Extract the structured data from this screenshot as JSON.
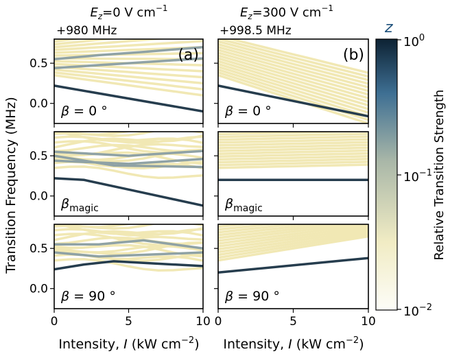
{
  "chart_data": {
    "type": "line",
    "columns": [
      {
        "top": "E",
        "top_sub": "z",
        "top_rest": "=0 V cm",
        "top_sup": "−1",
        "offset": "+980 MHz"
      },
      {
        "top": "E",
        "top_sub": "z",
        "top_rest": "=300 V cm",
        "top_sup": "−1",
        "offset": "+998.5 MHz"
      }
    ],
    "ylabel": "Transition Frequency (MHz)",
    "xlabel_main": "Intensity, ",
    "xlabel_var": "I",
    "xlabel_unit": " (kW cm",
    "xlabel_sup": "−2",
    "xlabel_close": ")",
    "xlim": [
      0,
      10
    ],
    "ylim": [
      -0.25,
      0.8
    ],
    "xticks": [
      "0",
      "5",
      "10"
    ],
    "yticks": [
      "0.0",
      "0.5"
    ],
    "yticks_values": [
      0.0,
      0.5
    ],
    "xticks_values": [
      0,
      5,
      10
    ],
    "panel_labels": [
      "(a)",
      "(b)"
    ],
    "row_labels": [
      {
        "greek": "β",
        "text": " = 0 °"
      },
      {
        "greek": "β",
        "sub": "magic"
      },
      {
        "greek": "β",
        "text": " = 90 °"
      }
    ],
    "colorbar": {
      "label": "Relative Transition Strength",
      "top_label": "z",
      "tick_top_base": "10",
      "tick_top_exp": "0",
      "tick_mid_base": "10",
      "tick_mid_exp": "−1",
      "tick_bot_base": "10",
      "tick_bot_exp": "−2",
      "scale": "log",
      "range": [
        0.01,
        1
      ],
      "color_low": "#f3ecc0",
      "color_high": "#0d2233"
    },
    "series": [
      {
        "panel": "a-row1",
        "strong": [
          [
            0,
            0.22
          ],
          [
            10,
            -0.1
          ]
        ],
        "medium": [
          [
            [
              0,
              0.55
            ],
            [
              3,
              0.6
            ],
            [
              6,
              0.64
            ],
            [
              10,
              0.7
            ]
          ],
          [
            [
              0,
              0.44
            ],
            [
              5,
              0.5
            ],
            [
              10,
              0.56
            ]
          ]
        ]
      },
      {
        "panel": "b-row1",
        "strong": [
          [
            0,
            0.22
          ],
          [
            10,
            -0.16
          ]
        ]
      },
      {
        "panel": "a-row2",
        "strong": [
          [
            0,
            0.22
          ],
          [
            2,
            0.2
          ],
          [
            5,
            0.08
          ],
          [
            10,
            -0.12
          ]
        ],
        "medium": [
          [
            [
              0,
              0.55
            ],
            [
              5,
              0.5
            ],
            [
              10,
              0.56
            ]
          ],
          [
            [
              0,
              0.44
            ],
            [
              5,
              0.4
            ],
            [
              10,
              0.46
            ]
          ],
          [
            [
              0,
              0.5
            ],
            [
              4,
              0.38
            ],
            [
              10,
              0.36
            ]
          ]
        ]
      },
      {
        "panel": "b-row2",
        "strong": [
          [
            0,
            0.2
          ],
          [
            10,
            0.2
          ]
        ]
      },
      {
        "panel": "a-row3",
        "strong": [
          [
            0,
            0.24
          ],
          [
            2,
            0.3
          ],
          [
            4,
            0.34
          ],
          [
            6,
            0.32
          ],
          [
            8,
            0.3
          ],
          [
            10,
            0.28
          ]
        ],
        "medium": [
          [
            [
              0,
              0.55
            ],
            [
              3,
              0.55
            ],
            [
              6,
              0.6
            ],
            [
              10,
              0.5
            ]
          ],
          [
            [
              0,
              0.45
            ],
            [
              3,
              0.4
            ],
            [
              6,
              0.42
            ],
            [
              10,
              0.45
            ]
          ]
        ]
      },
      {
        "panel": "b-row3",
        "strong": [
          [
            0,
            0.2
          ],
          [
            10,
            0.38
          ]
        ]
      }
    ]
  }
}
